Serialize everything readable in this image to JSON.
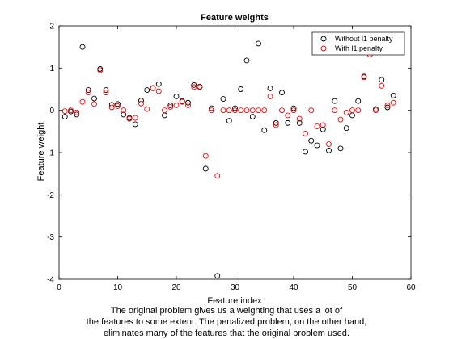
{
  "chart_data": {
    "type": "scatter",
    "title": "Feature weights",
    "xlabel": "Feature index",
    "ylabel": "Feature weight",
    "xlim": [
      0,
      60
    ],
    "ylim": [
      -4,
      2
    ],
    "xticks": [
      0,
      10,
      20,
      30,
      40,
      50,
      60
    ],
    "yticks": [
      -4,
      -3,
      -2,
      -1,
      0,
      1,
      2
    ],
    "grid": false,
    "legend_position": "top-right",
    "series": [
      {
        "name": "Without l1 penalty",
        "color": "#000000",
        "marker": "circle",
        "x": [
          1,
          2,
          3,
          4,
          5,
          6,
          7,
          8,
          9,
          10,
          11,
          12,
          13,
          14,
          15,
          16,
          17,
          18,
          19,
          20,
          21,
          22,
          23,
          24,
          25,
          26,
          27,
          28,
          29,
          30,
          31,
          32,
          33,
          34,
          35,
          36,
          37,
          38,
          39,
          40,
          41,
          42,
          43,
          44,
          45,
          46,
          47,
          48,
          49,
          50,
          51,
          52,
          53,
          54,
          55,
          56,
          57
        ],
        "y": [
          -0.15,
          -0.03,
          -0.1,
          1.5,
          0.48,
          0.28,
          0.98,
          0.48,
          0.13,
          0.15,
          -0.1,
          -0.18,
          -0.33,
          0.23,
          0.48,
          0.53,
          0.62,
          -0.12,
          0.12,
          0.33,
          0.22,
          0.18,
          0.6,
          0.56,
          -1.38,
          0.05,
          -3.92,
          0.27,
          -0.25,
          0.05,
          0.5,
          1.18,
          -0.15,
          1.58,
          -0.47,
          0.52,
          -0.3,
          0.42,
          -0.3,
          0.05,
          -0.3,
          -0.98,
          -0.72,
          -0.83,
          -0.45,
          -0.95,
          0.22,
          -0.9,
          -0.42,
          -0.12,
          0.22,
          0.8,
          1.38,
          0.03,
          0.72,
          0.07,
          0.35
        ]
      },
      {
        "name": "With l1 penalty",
        "color": "#ff0000",
        "marker": "circle",
        "x": [
          1,
          2,
          3,
          4,
          5,
          6,
          7,
          8,
          9,
          10,
          11,
          12,
          13,
          14,
          15,
          16,
          17,
          18,
          19,
          20,
          21,
          22,
          23,
          24,
          25,
          26,
          27,
          28,
          29,
          30,
          31,
          32,
          33,
          34,
          35,
          36,
          37,
          38,
          39,
          40,
          41,
          42,
          43,
          44,
          45,
          46,
          47,
          48,
          49,
          50,
          51,
          52,
          53,
          54,
          55,
          56,
          57
        ],
        "y": [
          -0.02,
          0.0,
          -0.05,
          0.2,
          0.42,
          0.15,
          0.95,
          0.42,
          0.07,
          0.1,
          0.0,
          -0.2,
          -0.18,
          0.16,
          0.03,
          0.52,
          0.45,
          0.0,
          0.08,
          0.12,
          0.2,
          0.12,
          0.55,
          0.55,
          -1.08,
          0.0,
          -1.55,
          0.0,
          0.0,
          0.0,
          0.0,
          0.0,
          0.0,
          0.0,
          0.0,
          0.33,
          -0.35,
          0.0,
          -0.12,
          0.0,
          -0.2,
          -0.55,
          0.0,
          -0.38,
          -0.35,
          -0.8,
          0.0,
          -0.22,
          -0.05,
          0.0,
          0.0,
          0.78,
          1.32,
          0.0,
          0.58,
          0.12,
          0.18
        ]
      }
    ]
  },
  "caption": {
    "lines": [
      "The original problem gives us a weighting that uses a lot of",
      "the features to some extent. The penalized problem, on the other hand,",
      "eliminates many of the features that the original problem used."
    ]
  }
}
